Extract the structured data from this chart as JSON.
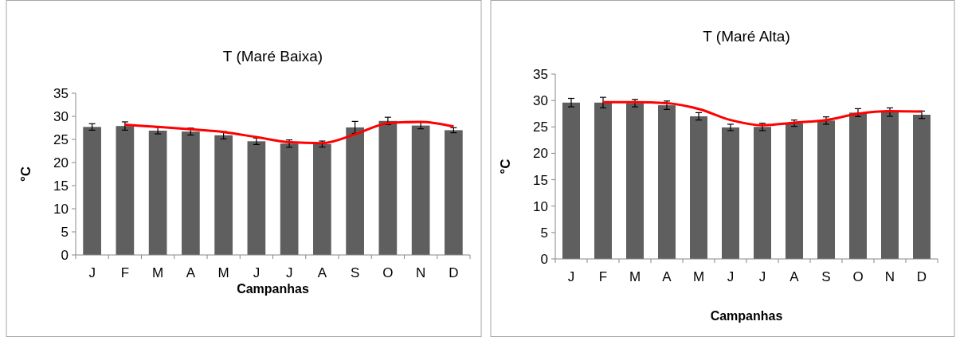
{
  "chart_data": [
    {
      "type": "bar",
      "title": "T (Maré Baixa)",
      "xlabel": "Campanhas",
      "ylabel": "°C",
      "categories": [
        "J",
        "F",
        "M",
        "A",
        "M",
        "J",
        "J",
        "A",
        "S",
        "O",
        "N",
        "D"
      ],
      "ylim": [
        0,
        35
      ],
      "yticks": [
        0,
        5,
        10,
        15,
        20,
        25,
        30,
        35
      ],
      "grid": false,
      "series": [
        {
          "color": "#5f5f5f",
          "values": [
            27.7,
            27.9,
            26.9,
            26.7,
            25.9,
            24.6,
            24.1,
            24.0,
            27.6,
            29.0,
            28.0,
            27.0
          ],
          "errors": [
            0.7,
            0.9,
            0.7,
            0.75,
            0.8,
            0.7,
            0.8,
            0.65,
            1.3,
            0.8,
            0.7,
            0.55
          ]
        },
        {
          "type": "line",
          "color": "#ff0000",
          "values": [
            null,
            28.2,
            27.7,
            27.2,
            26.6,
            25.5,
            24.4,
            24.2,
            26.1,
            28.5,
            28.8,
            27.8
          ]
        }
      ]
    },
    {
      "type": "bar",
      "title": "T (Maré Alta)",
      "xlabel": "Campanhas",
      "ylabel": "°C",
      "categories": [
        "J",
        "F",
        "M",
        "A",
        "M",
        "J",
        "J",
        "A",
        "S",
        "O",
        "N",
        "D"
      ],
      "ylim": [
        0,
        35
      ],
      "yticks": [
        0,
        5,
        10,
        15,
        20,
        25,
        30,
        35
      ],
      "grid": false,
      "series": [
        {
          "color": "#5f5f5f",
          "values": [
            29.6,
            29.6,
            29.5,
            29.1,
            27.0,
            24.9,
            25.0,
            25.7,
            26.2,
            27.7,
            27.8,
            27.3
          ],
          "errors": [
            0.8,
            1.0,
            0.7,
            0.8,
            0.7,
            0.6,
            0.7,
            0.6,
            0.7,
            0.75,
            0.8,
            0.7
          ]
        },
        {
          "type": "line",
          "color": "#ff0000",
          "values": [
            null,
            29.7,
            29.7,
            29.5,
            28.4,
            26.3,
            25.3,
            25.8,
            26.3,
            27.5,
            28.0,
            27.9
          ]
        }
      ]
    }
  ]
}
